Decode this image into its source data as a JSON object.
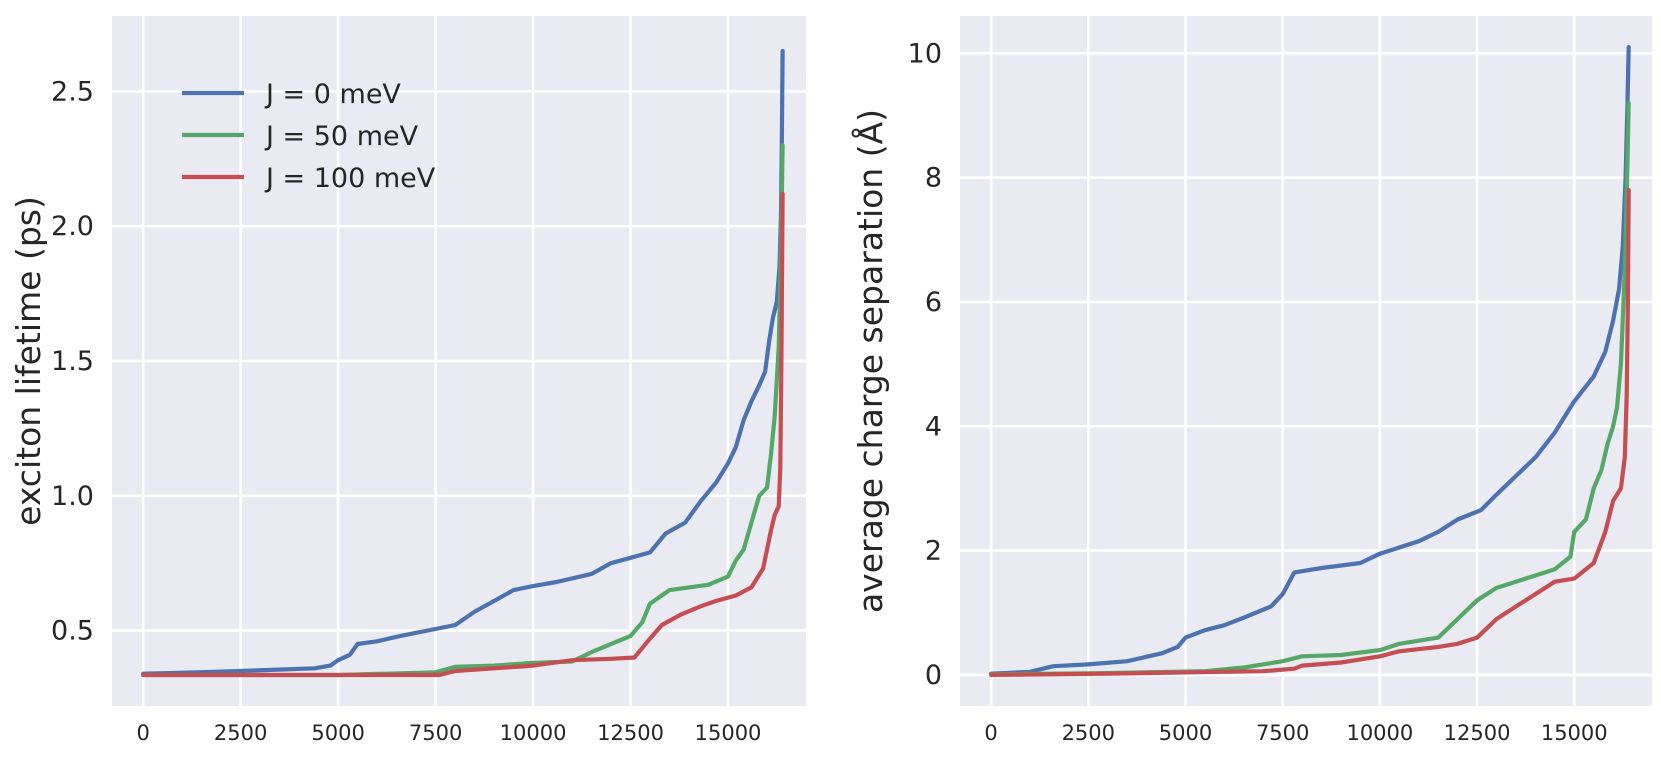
{
  "chart_data": [
    {
      "type": "line",
      "title": "",
      "xlabel": "",
      "ylabel": "exciton lifetime (ps)",
      "xlim": [
        -800,
        17000
      ],
      "ylim": [
        0.22,
        2.78
      ],
      "xticks": [
        0,
        2500,
        5000,
        7500,
        10000,
        12500,
        15000
      ],
      "xtick_labels": [
        "0",
        "2500",
        "5000",
        "7500",
        "10000",
        "12500",
        "15000"
      ],
      "yticks": [
        0.5,
        1.0,
        1.5,
        2.0,
        2.5
      ],
      "ytick_labels": [
        "0.5",
        "1.0",
        "1.5",
        "2.0",
        "2.5"
      ],
      "grid": true,
      "legend_position": "top-left",
      "series": [
        {
          "name": "J = 0 meV",
          "color": "#4c72b0",
          "points": [
            [
              0,
              0.34
            ],
            [
              1400,
              0.345
            ],
            [
              2500,
              0.35
            ],
            [
              4400,
              0.36
            ],
            [
              4800,
              0.37
            ],
            [
              5000,
              0.39
            ],
            [
              5300,
              0.41
            ],
            [
              5500,
              0.45
            ],
            [
              6000,
              0.46
            ],
            [
              6600,
              0.48
            ],
            [
              7300,
              0.5
            ],
            [
              8000,
              0.52
            ],
            [
              8500,
              0.57
            ],
            [
              9000,
              0.61
            ],
            [
              9500,
              0.65
            ],
            [
              10000,
              0.665
            ],
            [
              10600,
              0.68
            ],
            [
              11500,
              0.71
            ],
            [
              12000,
              0.75
            ],
            [
              12500,
              0.77
            ],
            [
              13000,
              0.79
            ],
            [
              13400,
              0.86
            ],
            [
              13900,
              0.9
            ],
            [
              14300,
              0.98
            ],
            [
              14700,
              1.05
            ],
            [
              15000,
              1.12
            ],
            [
              15200,
              1.18
            ],
            [
              15400,
              1.28
            ],
            [
              15600,
              1.35
            ],
            [
              15800,
              1.41
            ],
            [
              15950,
              1.46
            ],
            [
              16050,
              1.57
            ],
            [
              16150,
              1.66
            ],
            [
              16250,
              1.72
            ],
            [
              16320,
              1.85
            ],
            [
              16360,
              2.05
            ],
            [
              16380,
              2.3
            ],
            [
              16400,
              2.65
            ]
          ]
        },
        {
          "name": "J = 50 meV",
          "color": "#55a868",
          "points": [
            [
              0,
              0.335
            ],
            [
              5000,
              0.335
            ],
            [
              7500,
              0.345
            ],
            [
              8000,
              0.365
            ],
            [
              9000,
              0.37
            ],
            [
              10000,
              0.38
            ],
            [
              11000,
              0.385
            ],
            [
              11500,
              0.42
            ],
            [
              12000,
              0.45
            ],
            [
              12500,
              0.48
            ],
            [
              12800,
              0.53
            ],
            [
              13000,
              0.6
            ],
            [
              13500,
              0.65
            ],
            [
              14000,
              0.66
            ],
            [
              14500,
              0.67
            ],
            [
              15000,
              0.7
            ],
            [
              15200,
              0.76
            ],
            [
              15400,
              0.8
            ],
            [
              15600,
              0.9
            ],
            [
              15800,
              1.0
            ],
            [
              16000,
              1.03
            ],
            [
              16100,
              1.15
            ],
            [
              16200,
              1.3
            ],
            [
              16300,
              1.55
            ],
            [
              16360,
              1.9
            ],
            [
              16400,
              2.3
            ]
          ]
        },
        {
          "name": "J = 100 meV",
          "color": "#c44e52",
          "points": [
            [
              0,
              0.335
            ],
            [
              4000,
              0.335
            ],
            [
              7600,
              0.335
            ],
            [
              8000,
              0.35
            ],
            [
              9000,
              0.36
            ],
            [
              10000,
              0.37
            ],
            [
              11000,
              0.39
            ],
            [
              12000,
              0.395
            ],
            [
              12600,
              0.4
            ],
            [
              13000,
              0.47
            ],
            [
              13300,
              0.52
            ],
            [
              13800,
              0.56
            ],
            [
              14300,
              0.59
            ],
            [
              14700,
              0.61
            ],
            [
              15200,
              0.63
            ],
            [
              15600,
              0.66
            ],
            [
              15900,
              0.73
            ],
            [
              16100,
              0.87
            ],
            [
              16200,
              0.93
            ],
            [
              16300,
              0.96
            ],
            [
              16340,
              1.1
            ],
            [
              16370,
              1.5
            ],
            [
              16400,
              2.12
            ]
          ]
        }
      ]
    },
    {
      "type": "line",
      "title": "",
      "xlabel": "",
      "ylabel": "average charge separation (Å)",
      "xlim": [
        -800,
        17000
      ],
      "ylim": [
        -0.5,
        10.6
      ],
      "xticks": [
        0,
        2500,
        5000,
        7500,
        10000,
        12500,
        15000
      ],
      "xtick_labels": [
        "0",
        "2500",
        "5000",
        "7500",
        "10000",
        "12500",
        "15000"
      ],
      "yticks": [
        0,
        2,
        4,
        6,
        8,
        10
      ],
      "ytick_labels": [
        "0",
        "2",
        "4",
        "6",
        "8",
        "10"
      ],
      "grid": true,
      "series": [
        {
          "name": "J = 0 meV",
          "color": "#4c72b0",
          "points": [
            [
              0,
              0.02
            ],
            [
              1000,
              0.05
            ],
            [
              1600,
              0.14
            ],
            [
              2500,
              0.17
            ],
            [
              3500,
              0.22
            ],
            [
              4400,
              0.35
            ],
            [
              4800,
              0.45
            ],
            [
              5000,
              0.6
            ],
            [
              5500,
              0.72
            ],
            [
              6000,
              0.8
            ],
            [
              6500,
              0.92
            ],
            [
              7200,
              1.1
            ],
            [
              7500,
              1.3
            ],
            [
              7800,
              1.65
            ],
            [
              8500,
              1.72
            ],
            [
              9500,
              1.8
            ],
            [
              10000,
              1.95
            ],
            [
              11000,
              2.15
            ],
            [
              11500,
              2.3
            ],
            [
              12000,
              2.5
            ],
            [
              12600,
              2.65
            ],
            [
              13000,
              2.9
            ],
            [
              13500,
              3.2
            ],
            [
              14000,
              3.5
            ],
            [
              14500,
              3.9
            ],
            [
              15000,
              4.4
            ],
            [
              15500,
              4.8
            ],
            [
              15800,
              5.2
            ],
            [
              16000,
              5.7
            ],
            [
              16150,
              6.2
            ],
            [
              16250,
              6.9
            ],
            [
              16320,
              8.0
            ],
            [
              16370,
              9.2
            ],
            [
              16400,
              10.1
            ]
          ]
        },
        {
          "name": "J = 50 meV",
          "color": "#55a868",
          "points": [
            [
              0,
              0.01
            ],
            [
              3000,
              0.03
            ],
            [
              5500,
              0.06
            ],
            [
              6500,
              0.12
            ],
            [
              7500,
              0.22
            ],
            [
              8000,
              0.3
            ],
            [
              9000,
              0.32
            ],
            [
              10000,
              0.4
            ],
            [
              10500,
              0.5
            ],
            [
              11000,
              0.55
            ],
            [
              11500,
              0.6
            ],
            [
              12000,
              0.9
            ],
            [
              12500,
              1.2
            ],
            [
              13000,
              1.4
            ],
            [
              13500,
              1.5
            ],
            [
              14000,
              1.6
            ],
            [
              14500,
              1.7
            ],
            [
              14900,
              1.9
            ],
            [
              15000,
              2.3
            ],
            [
              15300,
              2.5
            ],
            [
              15500,
              3.0
            ],
            [
              15700,
              3.3
            ],
            [
              15850,
              3.7
            ],
            [
              16000,
              4.0
            ],
            [
              16100,
              4.3
            ],
            [
              16200,
              5.0
            ],
            [
              16300,
              6.5
            ],
            [
              16360,
              8.0
            ],
            [
              16400,
              9.2
            ]
          ]
        },
        {
          "name": "J = 100 meV",
          "color": "#c44e52",
          "points": [
            [
              0,
              0.0
            ],
            [
              3000,
              0.02
            ],
            [
              5000,
              0.04
            ],
            [
              7000,
              0.06
            ],
            [
              7800,
              0.1
            ],
            [
              8000,
              0.15
            ],
            [
              9000,
              0.2
            ],
            [
              10000,
              0.3
            ],
            [
              10500,
              0.38
            ],
            [
              11500,
              0.45
            ],
            [
              12000,
              0.5
            ],
            [
              12500,
              0.6
            ],
            [
              13000,
              0.9
            ],
            [
              13500,
              1.1
            ],
            [
              14000,
              1.3
            ],
            [
              14500,
              1.5
            ],
            [
              15000,
              1.55
            ],
            [
              15500,
              1.8
            ],
            [
              15800,
              2.3
            ],
            [
              16000,
              2.8
            ],
            [
              16200,
              3.0
            ],
            [
              16300,
              3.5
            ],
            [
              16350,
              4.5
            ],
            [
              16380,
              6.0
            ],
            [
              16400,
              7.8
            ]
          ]
        }
      ]
    }
  ]
}
